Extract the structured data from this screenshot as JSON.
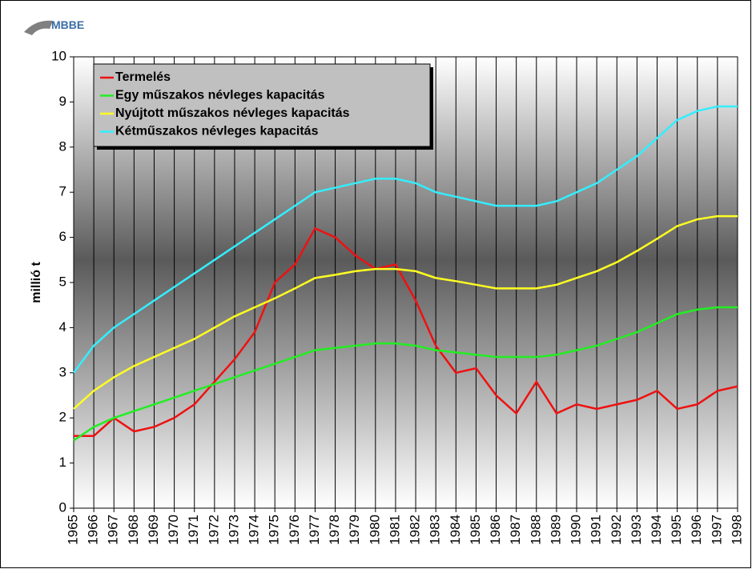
{
  "logo": "MBBE",
  "chart_data": {
    "type": "line",
    "ylabel": "millió t",
    "x": [
      1965,
      1966,
      1967,
      1968,
      1969,
      1970,
      1971,
      1972,
      1973,
      1974,
      1975,
      1976,
      1977,
      1978,
      1979,
      1980,
      1981,
      1982,
      1983,
      1984,
      1985,
      1986,
      1987,
      1988,
      1989,
      1990,
      1991,
      1992,
      1993,
      1994,
      1995,
      1996,
      1997,
      1998
    ],
    "xlim": [
      1965,
      1998
    ],
    "ylim": [
      0,
      10
    ],
    "yticks": [
      0,
      1,
      2,
      3,
      4,
      5,
      6,
      7,
      8,
      9,
      10
    ],
    "grid": "x",
    "legend": "upper left",
    "series": [
      {
        "name": "Termelés",
        "color": "#ee1111",
        "values": [
          1.6,
          1.6,
          2.0,
          1.7,
          1.8,
          2.0,
          2.3,
          2.8,
          3.3,
          3.9,
          5.0,
          5.4,
          6.2,
          6.0,
          5.6,
          5.3,
          5.4,
          4.6,
          3.6,
          3.0,
          3.1,
          2.5,
          2.1,
          2.8,
          2.1,
          2.3,
          2.2,
          2.3,
          2.4,
          2.6,
          2.2,
          2.3,
          2.6,
          2.7
        ]
      },
      {
        "name": "Egy műszakos névleges kapacitás",
        "color": "#22ee22",
        "values": [
          1.5,
          1.8,
          2.0,
          2.15,
          2.3,
          2.45,
          2.6,
          2.75,
          2.9,
          3.05,
          3.2,
          3.35,
          3.5,
          3.55,
          3.6,
          3.65,
          3.65,
          3.6,
          3.5,
          3.45,
          3.4,
          3.35,
          3.35,
          3.35,
          3.4,
          3.5,
          3.6,
          3.75,
          3.9,
          4.1,
          4.3,
          4.4,
          4.45,
          4.45
        ]
      },
      {
        "name": "Nyújtott műszakos névleges kapacitás",
        "color": "#ffff22",
        "values": [
          2.2,
          2.6,
          2.9,
          3.15,
          3.35,
          3.55,
          3.75,
          4.0,
          4.25,
          4.45,
          4.65,
          4.87,
          5.1,
          5.17,
          5.25,
          5.3,
          5.3,
          5.25,
          5.1,
          5.03,
          4.95,
          4.87,
          4.87,
          4.87,
          4.95,
          5.1,
          5.25,
          5.45,
          5.7,
          5.97,
          6.25,
          6.4,
          6.47,
          6.47
        ]
      },
      {
        "name": "Kétműszakos névleges kapacitás",
        "color": "#33eeff",
        "values": [
          3.0,
          3.6,
          4.0,
          4.3,
          4.6,
          4.9,
          5.2,
          5.5,
          5.8,
          6.1,
          6.4,
          6.7,
          7.0,
          7.1,
          7.2,
          7.3,
          7.3,
          7.2,
          7.0,
          6.9,
          6.8,
          6.7,
          6.7,
          6.7,
          6.8,
          7.0,
          7.2,
          7.5,
          7.8,
          8.2,
          8.6,
          8.8,
          8.9,
          8.9
        ]
      }
    ]
  }
}
